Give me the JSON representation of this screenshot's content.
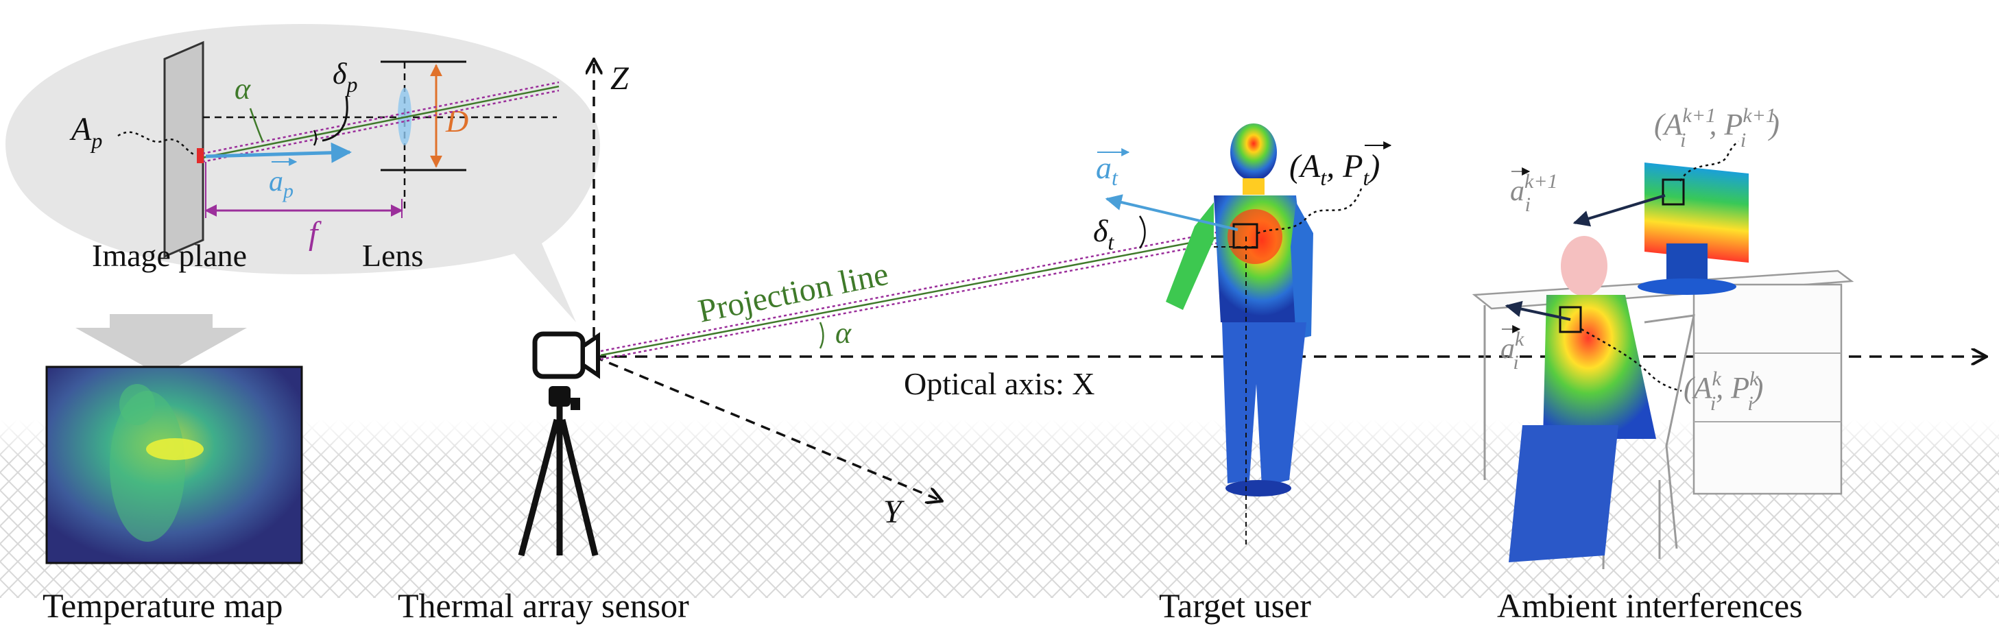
{
  "bubble": {
    "label_ap": "A",
    "label_ap_sub": "p",
    "label_alpha": "α",
    "label_delta_p": "δ",
    "label_delta_p_sub": "p",
    "label_D": "D",
    "label_vec_ap": "a",
    "label_vec_ap_sub": "p",
    "label_f": "f",
    "image_plane": "Image plane",
    "lens": "Lens"
  },
  "axes": {
    "z": "Z",
    "y": "Y",
    "optical_axis": "Optical axis: X"
  },
  "projection": {
    "label": "Projection line",
    "alpha": "α"
  },
  "target": {
    "vec_at": "a",
    "vec_at_sub": "t",
    "tuple_open": "(A",
    "tuple_a_sub": "t",
    "tuple_mid": ", P",
    "tuple_p_sub": "t",
    "tuple_close": ")",
    "delta": "δ",
    "delta_sub": "t"
  },
  "ambient": {
    "vec_ai_k1": "a",
    "vec_ai_k1_sub": "i",
    "vec_ai_k1_sup": "k+1",
    "vec_ai_k": "a",
    "vec_ai_k_sub": "i",
    "vec_ai_k_sup": "k",
    "tuple_k1_open": "(A",
    "tuple_k1_a_sub": "i",
    "tuple_k1_a_sup": "k+1",
    "tuple_k1_mid": ", P",
    "tuple_k1_p_sub": "i",
    "tuple_k1_p_sup": "k+1",
    "tuple_k1_close": ")",
    "tuple_k_open": "(A",
    "tuple_k_a_sub": "i",
    "tuple_k_a_sup": "k",
    "tuple_k_mid": ", P",
    "tuple_k_p_sub": "i",
    "tuple_k_p_sup": "k",
    "tuple_k_close": ")"
  },
  "captions": {
    "temperature_map": "Temperature map",
    "thermal_sensor": "Thermal array sensor",
    "target_user": "Target user",
    "ambient_interferences": "Ambient interferences"
  },
  "colors": {
    "alpha_green": "#3f7a2a",
    "delta_dark": "#111111",
    "vector_blue": "#4a9fd8",
    "focal_purple": "#9b2f9b",
    "aperture_orange": "#e0712b",
    "ambient_gray": "#8a8a8a",
    "bubble_fill": "#e6e6e6"
  }
}
